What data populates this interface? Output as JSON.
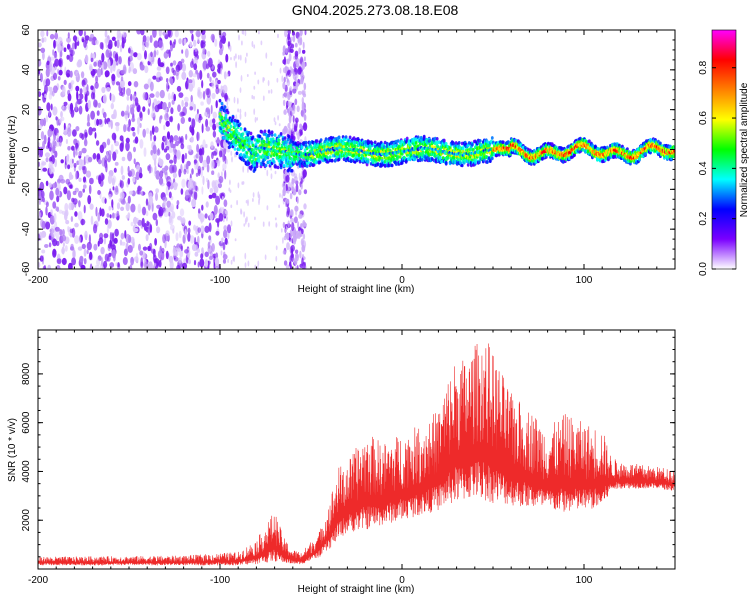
{
  "title": "GN04.2025.273.08.18.E08",
  "chart_data": [
    {
      "type": "heatmap",
      "xlabel": "Height of straight line (km)",
      "ylabel": "Frequency (Hz)",
      "xlim": [
        -200,
        150
      ],
      "ylim": [
        -60,
        60
      ],
      "x_ticks": [
        -200,
        -100,
        0,
        100
      ],
      "x_tick_labels": [
        "-200",
        "-100",
        "0",
        "100"
      ],
      "y_ticks": [
        -60,
        -40,
        -20,
        0,
        20,
        40,
        60
      ],
      "y_tick_labels": [
        "-60",
        "-40",
        "-20",
        "0",
        "20",
        "40",
        "60"
      ],
      "colorbar": {
        "label": "Normalized spectral amplitude",
        "range": [
          0.0,
          0.95
        ],
        "ticks": [
          0.0,
          0.2,
          0.4,
          0.6,
          0.8
        ],
        "tick_labels": [
          "0.0",
          "0.2",
          "0.4",
          "0.6",
          "0.8"
        ],
        "colors": [
          "#ffffff",
          "#7a00ff",
          "#0000ff",
          "#00ffff",
          "#00ff00",
          "#ffff00",
          "#ff8000",
          "#ff0000",
          "#ff00ff"
        ]
      },
      "features": {
        "noise_region_x": [
          -200,
          -100
        ],
        "noise_band_x": [
          -65,
          -53
        ],
        "line_start_x": -100,
        "line_end_x": 150,
        "line_freq_center": 0
      }
    },
    {
      "type": "line",
      "xlabel": "Height of straight line (km)",
      "ylabel": "SNR (10 * v/v)",
      "xlim": [
        -200,
        150
      ],
      "ylim": [
        0,
        9800
      ],
      "x_ticks": [
        -200,
        -100,
        0,
        100
      ],
      "x_tick_labels": [
        "-200",
        "-100",
        "0",
        "100"
      ],
      "y_ticks": [
        2000,
        4000,
        6000,
        8000
      ],
      "y_tick_labels": [
        "2000",
        "4000",
        "6000",
        "8000"
      ],
      "color": "#ee2a2a",
      "envelope": {
        "x": [
          -200,
          -120,
          -90,
          -80,
          -75,
          -70,
          -65,
          -60,
          -55,
          -45,
          -40,
          -35,
          -30,
          -20,
          -10,
          0,
          10,
          20,
          25,
          30,
          35,
          40,
          45,
          50,
          60,
          70,
          80,
          90,
          100,
          110,
          115,
          120,
          130,
          140,
          150
        ],
        "upper": [
          500,
          550,
          700,
          1200,
          1800,
          2400,
          1300,
          800,
          700,
          1600,
          2800,
          4200,
          4400,
          5600,
          5200,
          5600,
          5900,
          6600,
          7800,
          8800,
          8600,
          9200,
          9700,
          8900,
          7200,
          6600,
          5800,
          6400,
          6000,
          5800,
          4600,
          4400,
          4300,
          4200,
          4100
        ],
        "lower": [
          150,
          150,
          150,
          200,
          250,
          300,
          250,
          200,
          200,
          500,
          800,
          1200,
          1500,
          1600,
          1800,
          2000,
          2200,
          2400,
          2600,
          2700,
          2800,
          2900,
          2800,
          2700,
          2600,
          2500,
          2400,
          2300,
          2400,
          2500,
          3200,
          3300,
          3300,
          3300,
          3200
        ]
      }
    }
  ]
}
